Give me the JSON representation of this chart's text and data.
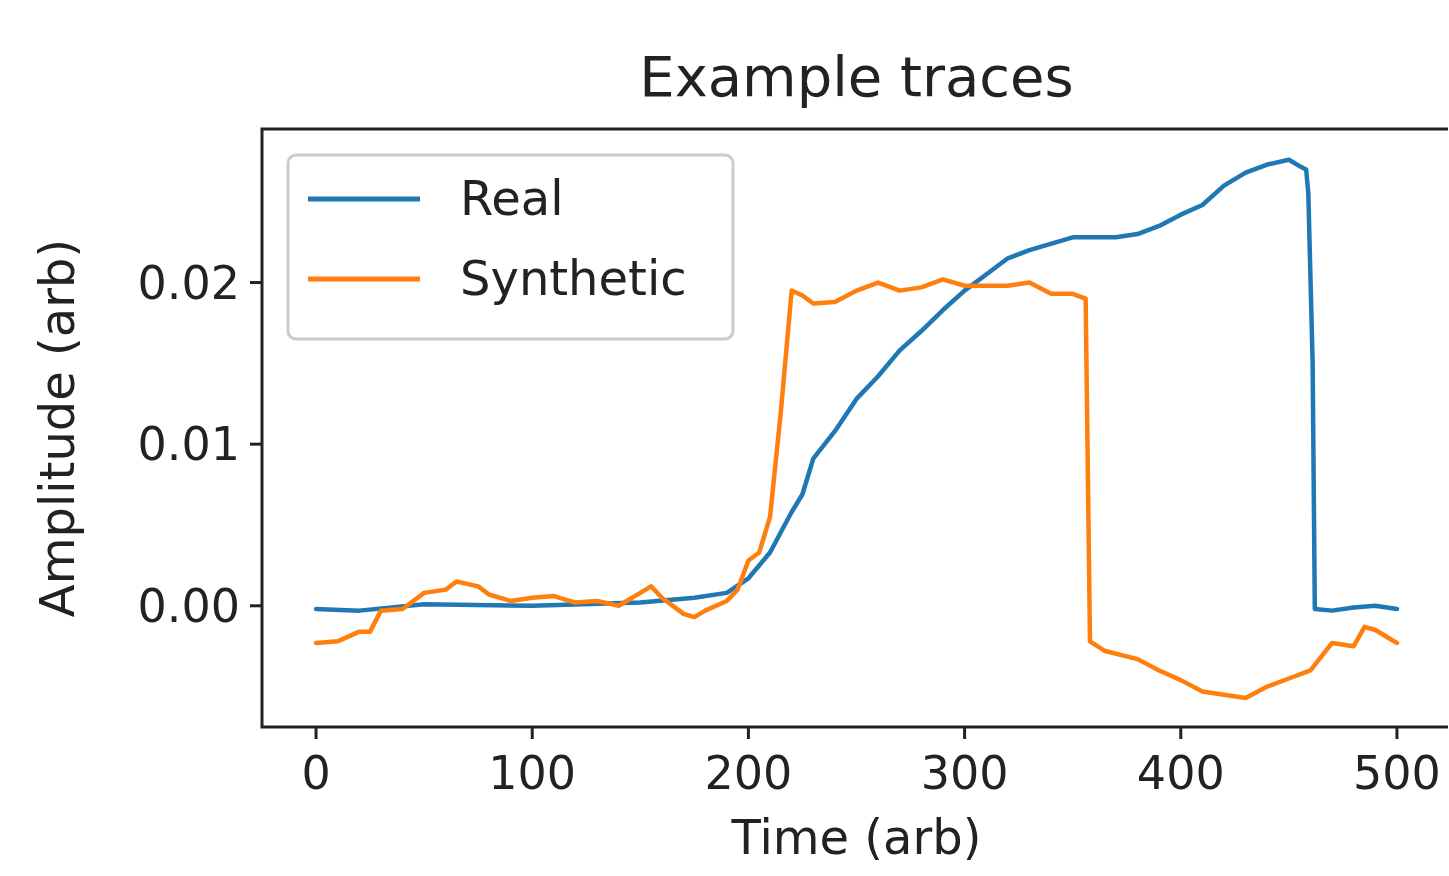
{
  "chart_data": {
    "type": "line",
    "title": "Example traces",
    "xlabel": "Time (arb)",
    "ylabel": "Amplitude (arb)",
    "xlim": [
      -25,
      525
    ],
    "xticks": [
      0,
      100,
      200,
      300,
      400,
      500
    ],
    "ylim": [
      -0.0075,
      0.0295
    ],
    "yticks": [
      {
        "value": 0,
        "label": "0.00"
      },
      {
        "value": 0.01,
        "label": "0.01"
      },
      {
        "value": 0.02,
        "label": "0.02"
      }
    ],
    "grid": false,
    "legend": "top left",
    "series": [
      {
        "name": "Real",
        "color": "#1f77b4",
        "x": [
          0,
          20,
          50,
          100,
          150,
          175,
          190,
          200,
          210,
          220,
          225,
          230,
          240,
          250,
          260,
          270,
          280,
          290,
          300,
          310,
          320,
          330,
          350,
          370,
          380,
          390,
          400,
          410,
          420,
          430,
          440,
          450,
          455,
          458,
          459,
          461,
          462,
          470,
          480,
          490,
          500
        ],
        "values": [
          -0.0002,
          -0.0003,
          0.0001,
          0.0,
          0.0002,
          0.0005,
          0.0008,
          0.0017,
          0.0033,
          0.0058,
          0.0069,
          0.0091,
          0.0108,
          0.0128,
          0.0142,
          0.0158,
          0.017,
          0.0183,
          0.0195,
          0.0205,
          0.0215,
          0.022,
          0.0228,
          0.0228,
          0.023,
          0.0235,
          0.0242,
          0.0248,
          0.026,
          0.0268,
          0.0273,
          0.0276,
          0.0272,
          0.027,
          0.0255,
          0.015,
          -0.0002,
          -0.0003,
          -0.0001,
          0.0,
          -0.0002
        ]
      },
      {
        "name": "Synthetic",
        "color": "#ff7f0e",
        "x": [
          0,
          10,
          20,
          25,
          30,
          40,
          50,
          60,
          65,
          75,
          80,
          90,
          100,
          110,
          120,
          130,
          140,
          150,
          155,
          160,
          170,
          175,
          180,
          190,
          195,
          200,
          205,
          210,
          215,
          220,
          225,
          230,
          240,
          250,
          260,
          270,
          280,
          290,
          300,
          310,
          320,
          330,
          340,
          350,
          356,
          358,
          365,
          380,
          390,
          400,
          410,
          420,
          430,
          440,
          450,
          460,
          470,
          480,
          485,
          490,
          500
        ],
        "values": [
          -0.0023,
          -0.0022,
          -0.0016,
          -0.0016,
          -0.0003,
          -0.0002,
          0.0008,
          0.001,
          0.0015,
          0.0012,
          0.0007,
          0.0003,
          0.0005,
          0.0006,
          0.0002,
          0.0003,
          0.0,
          0.0008,
          0.0012,
          0.0005,
          -0.0005,
          -0.0007,
          -0.0003,
          0.0003,
          0.001,
          0.0028,
          0.0033,
          0.0055,
          0.012,
          0.0195,
          0.0192,
          0.0187,
          0.0188,
          0.0195,
          0.02,
          0.0195,
          0.0197,
          0.0202,
          0.0198,
          0.0198,
          0.0198,
          0.02,
          0.0193,
          0.0193,
          0.019,
          -0.0022,
          -0.0028,
          -0.0033,
          -0.004,
          -0.0046,
          -0.0053,
          -0.0055,
          -0.0057,
          -0.005,
          -0.0045,
          -0.004,
          -0.0023,
          -0.0025,
          -0.0013,
          -0.0015,
          -0.0023
        ]
      }
    ]
  }
}
